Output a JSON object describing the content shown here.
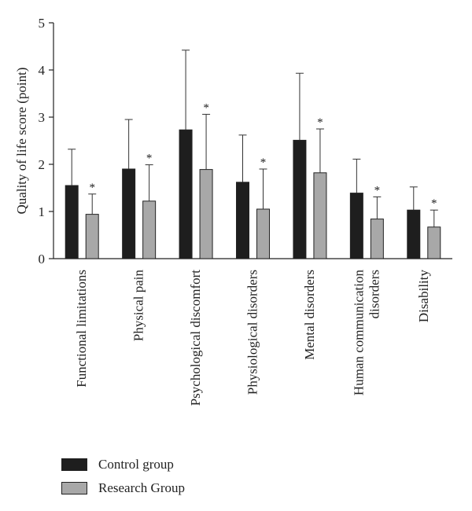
{
  "chart_data": {
    "type": "bar",
    "ylabel": "Quality of life score (point)",
    "xlabel": "",
    "ylim": [
      0,
      5
    ],
    "yticks": [
      "0",
      "1",
      "2",
      "3",
      "4",
      "5"
    ],
    "categories": [
      [
        "Functional limitations"
      ],
      [
        "Physical pain"
      ],
      [
        "Psychological discomfort"
      ],
      [
        "Physiological disorders"
      ],
      [
        "Mental disorders"
      ],
      [
        "Human communication",
        "disorders"
      ],
      [
        "Disability"
      ]
    ],
    "series": [
      {
        "name": "Control group",
        "color": "#1e1e1e",
        "values": [
          1.55,
          1.9,
          2.73,
          1.62,
          2.51,
          1.39,
          1.03
        ],
        "error": [
          0.77,
          1.05,
          1.69,
          1.0,
          1.42,
          0.72,
          0.49
        ]
      },
      {
        "name": "Research Group",
        "color": "#a8a8a8",
        "values": [
          0.94,
          1.22,
          1.89,
          1.05,
          1.82,
          0.84,
          0.67
        ],
        "error": [
          0.43,
          0.77,
          1.17,
          0.85,
          0.93,
          0.47,
          0.36
        ]
      }
    ],
    "annotations": [
      "*",
      "*",
      "*",
      "*",
      "*",
      "*",
      "*"
    ],
    "legend_position": "bottom-left",
    "grid": false
  }
}
